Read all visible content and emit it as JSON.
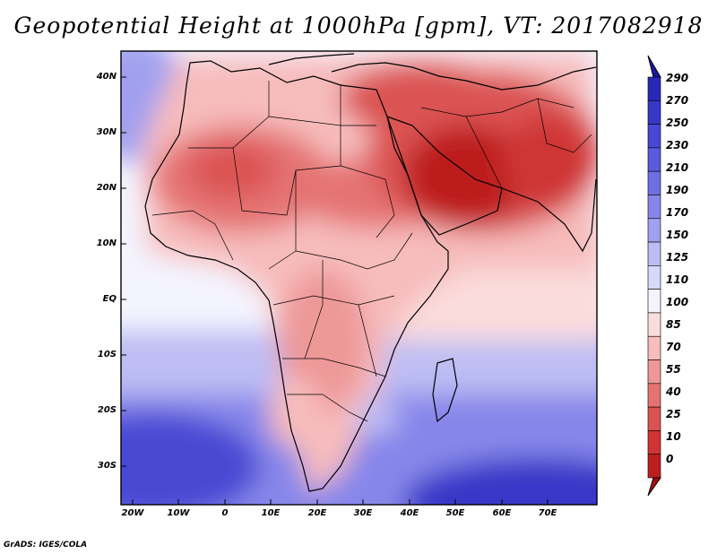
{
  "title": "Geopotential Height at 1000hPa [gpm], VT: 2017082918",
  "map": {
    "lat_labels": [
      "40N",
      "30N",
      "20N",
      "10N",
      "EQ",
      "10S",
      "20S",
      "30S"
    ],
    "lon_labels": [
      "20W",
      "10W",
      "0",
      "10E",
      "20E",
      "30E",
      "40E",
      "50E",
      "60E",
      "70E"
    ],
    "lat_range": [
      -37,
      45
    ],
    "lon_range": [
      -23,
      80
    ]
  },
  "colorbar": {
    "labels": [
      "290",
      "270",
      "250",
      "230",
      "210",
      "190",
      "170",
      "150",
      "125",
      "110",
      "100",
      "85",
      "70",
      "55",
      "40",
      "25",
      "10",
      "0"
    ],
    "colors": [
      "#1a1aa5",
      "#2828b8",
      "#3838c8",
      "#4848d4",
      "#5a5add",
      "#6f6fe4",
      "#8686ea",
      "#a0a0ef",
      "#bdbdf4",
      "#d8d8f9",
      "#f4f4ff",
      "#fbdcdc",
      "#f7bcbc",
      "#ee9898",
      "#e57373",
      "#db5252",
      "#cf3535",
      "#bd1f1f",
      "#a80f0f"
    ]
  },
  "credit": "GrADS: IGES/COLA"
}
